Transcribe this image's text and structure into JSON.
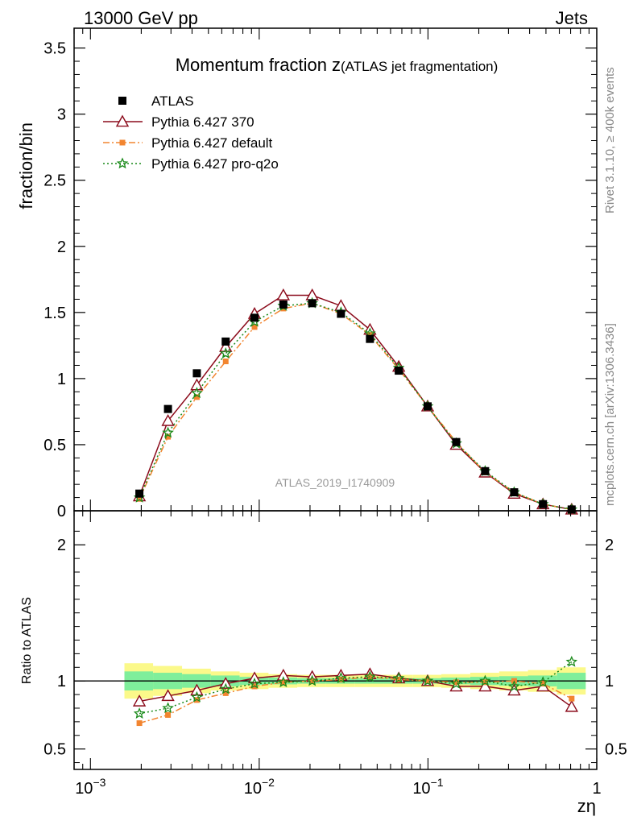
{
  "header": {
    "left": "13000 GeV pp",
    "right": "Jets"
  },
  "side_text": {
    "rivet": "Rivet 3.1.10, ≥ 400k events",
    "mcplots": "mcplots.cern.ch [arXiv:1306.3436]"
  },
  "watermark": "ATLAS_2019_I1740909",
  "colors": {
    "atlas": "#000000",
    "p370": "#8b0b1b",
    "pdefault": "#f28530",
    "pq2o": "#1a8a1a",
    "band_inner": "#7fee9b",
    "band_outer": "#fbf98a"
  },
  "chart_data": [
    {
      "type": "scatter",
      "title": "Momentum fraction",
      "title_var": "z",
      "title_sub": "(ATLAS jet fragmentation)",
      "ylabel": "fraction/bin",
      "xscale": "log",
      "xlim": [
        0.0008,
        1.0
      ],
      "ylim": [
        0,
        3.65
      ],
      "yticks": [
        0,
        0.5,
        1,
        1.5,
        2,
        2.5,
        3,
        3.5
      ],
      "ytick_labels": [
        "0",
        "0.5",
        "1",
        "1.5",
        "2",
        "2.5",
        "3",
        "3.5"
      ],
      "legend_position": "top-left",
      "x": [
        0.00195,
        0.00288,
        0.00427,
        0.00633,
        0.00938,
        0.0139,
        0.0206,
        0.0305,
        0.0453,
        0.0671,
        0.0995,
        0.147,
        0.218,
        0.324,
        0.48,
        0.71
      ],
      "series": [
        {
          "name": "ATLAS",
          "marker": "square",
          "values": [
            0.13,
            0.77,
            1.04,
            1.28,
            1.46,
            1.56,
            1.57,
            1.49,
            1.3,
            1.06,
            0.79,
            0.52,
            0.3,
            0.14,
            0.05,
            0.01
          ]
        },
        {
          "name": "Pythia 6.427 370",
          "marker": "triangle",
          "values": [
            0.11,
            0.68,
            0.95,
            1.24,
            1.49,
            1.63,
            1.63,
            1.55,
            1.37,
            1.09,
            0.79,
            0.5,
            0.29,
            0.13,
            0.05,
            0.01
          ]
        },
        {
          "name": "Pythia 6.427 default",
          "marker": "square-small",
          "values": [
            0.09,
            0.56,
            0.86,
            1.13,
            1.39,
            1.53,
            1.57,
            1.49,
            1.33,
            1.07,
            0.79,
            0.52,
            0.29,
            0.14,
            0.05,
            0.01
          ]
        },
        {
          "name": "Pythia 6.427 pro-q2o",
          "marker": "star",
          "values": [
            0.1,
            0.59,
            0.89,
            1.19,
            1.43,
            1.55,
            1.57,
            1.5,
            1.34,
            1.08,
            0.79,
            0.51,
            0.3,
            0.14,
            0.05,
            0.01
          ]
        }
      ]
    },
    {
      "type": "line",
      "ylabel": "Ratio to ATLAS",
      "xlabel": "zη",
      "xscale": "log",
      "xlim": [
        0.0008,
        1.0
      ],
      "ylim": [
        0.35,
        2.25
      ],
      "yticks": [
        0.5,
        1,
        2
      ],
      "ytick_labels": [
        "0.5",
        "1",
        "2"
      ],
      "xticks": [
        0.001,
        0.01,
        0.1,
        1
      ],
      "xtick_bases": [
        "10",
        "10",
        "10",
        "1"
      ],
      "xtick_exps": [
        "−3",
        "−2",
        "−1",
        ""
      ],
      "bin_edges": [
        0.00159,
        0.00235,
        0.00349,
        0.00517,
        0.00766,
        0.01135,
        0.0168,
        0.0249,
        0.0369,
        0.0547,
        0.081,
        0.12,
        0.178,
        0.264,
        0.391,
        0.58,
        0.86
      ],
      "band_inner_halfwidth": [
        0.07,
        0.06,
        0.05,
        0.04,
        0.03,
        0.025,
        0.02,
        0.02,
        0.02,
        0.02,
        0.02,
        0.025,
        0.03,
        0.035,
        0.04,
        0.06
      ],
      "band_outer_halfwidth": [
        0.13,
        0.11,
        0.09,
        0.07,
        0.06,
        0.05,
        0.045,
        0.045,
        0.045,
        0.045,
        0.045,
        0.05,
        0.06,
        0.07,
        0.08,
        0.1
      ],
      "x": [
        0.00195,
        0.00288,
        0.00427,
        0.00633,
        0.00938,
        0.0139,
        0.0206,
        0.0305,
        0.0453,
        0.0671,
        0.0995,
        0.147,
        0.218,
        0.324,
        0.48,
        0.71
      ],
      "series": [
        {
          "name": "Pythia 6.427 370",
          "values": [
            0.85,
            0.89,
            0.93,
            0.98,
            1.02,
            1.04,
            1.03,
            1.04,
            1.05,
            1.02,
            1.0,
            0.96,
            0.96,
            0.93,
            0.96,
            0.81
          ]
        },
        {
          "name": "Pythia 6.427 default",
          "values": [
            0.69,
            0.75,
            0.86,
            0.91,
            0.96,
            0.99,
            1.0,
            1.01,
            1.03,
            1.01,
            1.0,
            0.99,
            0.99,
            1.0,
            0.98,
            0.87
          ]
        },
        {
          "name": "Pythia 6.427 pro-q2o",
          "values": [
            0.76,
            0.8,
            0.88,
            0.94,
            0.98,
            0.99,
            1.0,
            1.02,
            1.03,
            1.02,
            1.0,
            0.98,
            1.0,
            0.96,
            0.99,
            1.14
          ]
        }
      ]
    }
  ]
}
